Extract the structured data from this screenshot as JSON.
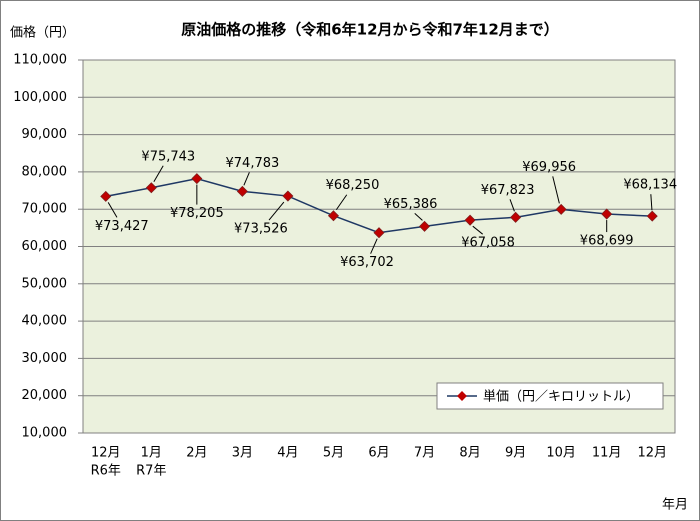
{
  "chart_data": {
    "type": "line",
    "title": "原油価格の推移（令和6年12月から令和7年12月まで）",
    "y_label": "価格（円）",
    "x_label": "年月",
    "categories": [
      [
        "12月",
        "R6年"
      ],
      [
        "1月",
        "R7年"
      ],
      [
        "2月"
      ],
      [
        "3月"
      ],
      [
        "4月"
      ],
      [
        "5月"
      ],
      [
        "6月"
      ],
      [
        "7月"
      ],
      [
        "8月"
      ],
      [
        "9月"
      ],
      [
        "10月"
      ],
      [
        "11月"
      ],
      [
        "12月"
      ]
    ],
    "series": [
      {
        "name": "単価（円／キロリットル）",
        "color": "#1f3864",
        "marker_color": "#c00000",
        "values": [
          73427,
          75743,
          78205,
          74783,
          73526,
          68250,
          63702,
          65386,
          67058,
          67823,
          69956,
          68699,
          68134
        ],
        "value_labels": [
          "¥73,427",
          "¥75,743",
          "¥78,205",
          "¥74,783",
          "¥73,526",
          "¥68,250",
          "¥63,702",
          "¥65,386",
          "¥67,058",
          "¥67,823",
          "¥69,956",
          "¥68,699",
          "¥68,134"
        ]
      }
    ],
    "ylim": [
      10000,
      110000
    ],
    "yticks": [
      {
        "value": 10000,
        "label": "10,000"
      },
      {
        "value": 20000,
        "label": "20,000"
      },
      {
        "value": 30000,
        "label": "30,000"
      },
      {
        "value": 40000,
        "label": "40,000"
      },
      {
        "value": 50000,
        "label": "50,000"
      },
      {
        "value": 60000,
        "label": "60,000"
      },
      {
        "value": 70000,
        "label": "70,000"
      },
      {
        "value": 80000,
        "label": "80,000"
      },
      {
        "value": 90000,
        "label": "90,000"
      },
      {
        "value": 100000,
        "label": "100,000"
      },
      {
        "value": 110000,
        "label": "110,000"
      }
    ],
    "grid": true,
    "legend": "lower-right"
  }
}
